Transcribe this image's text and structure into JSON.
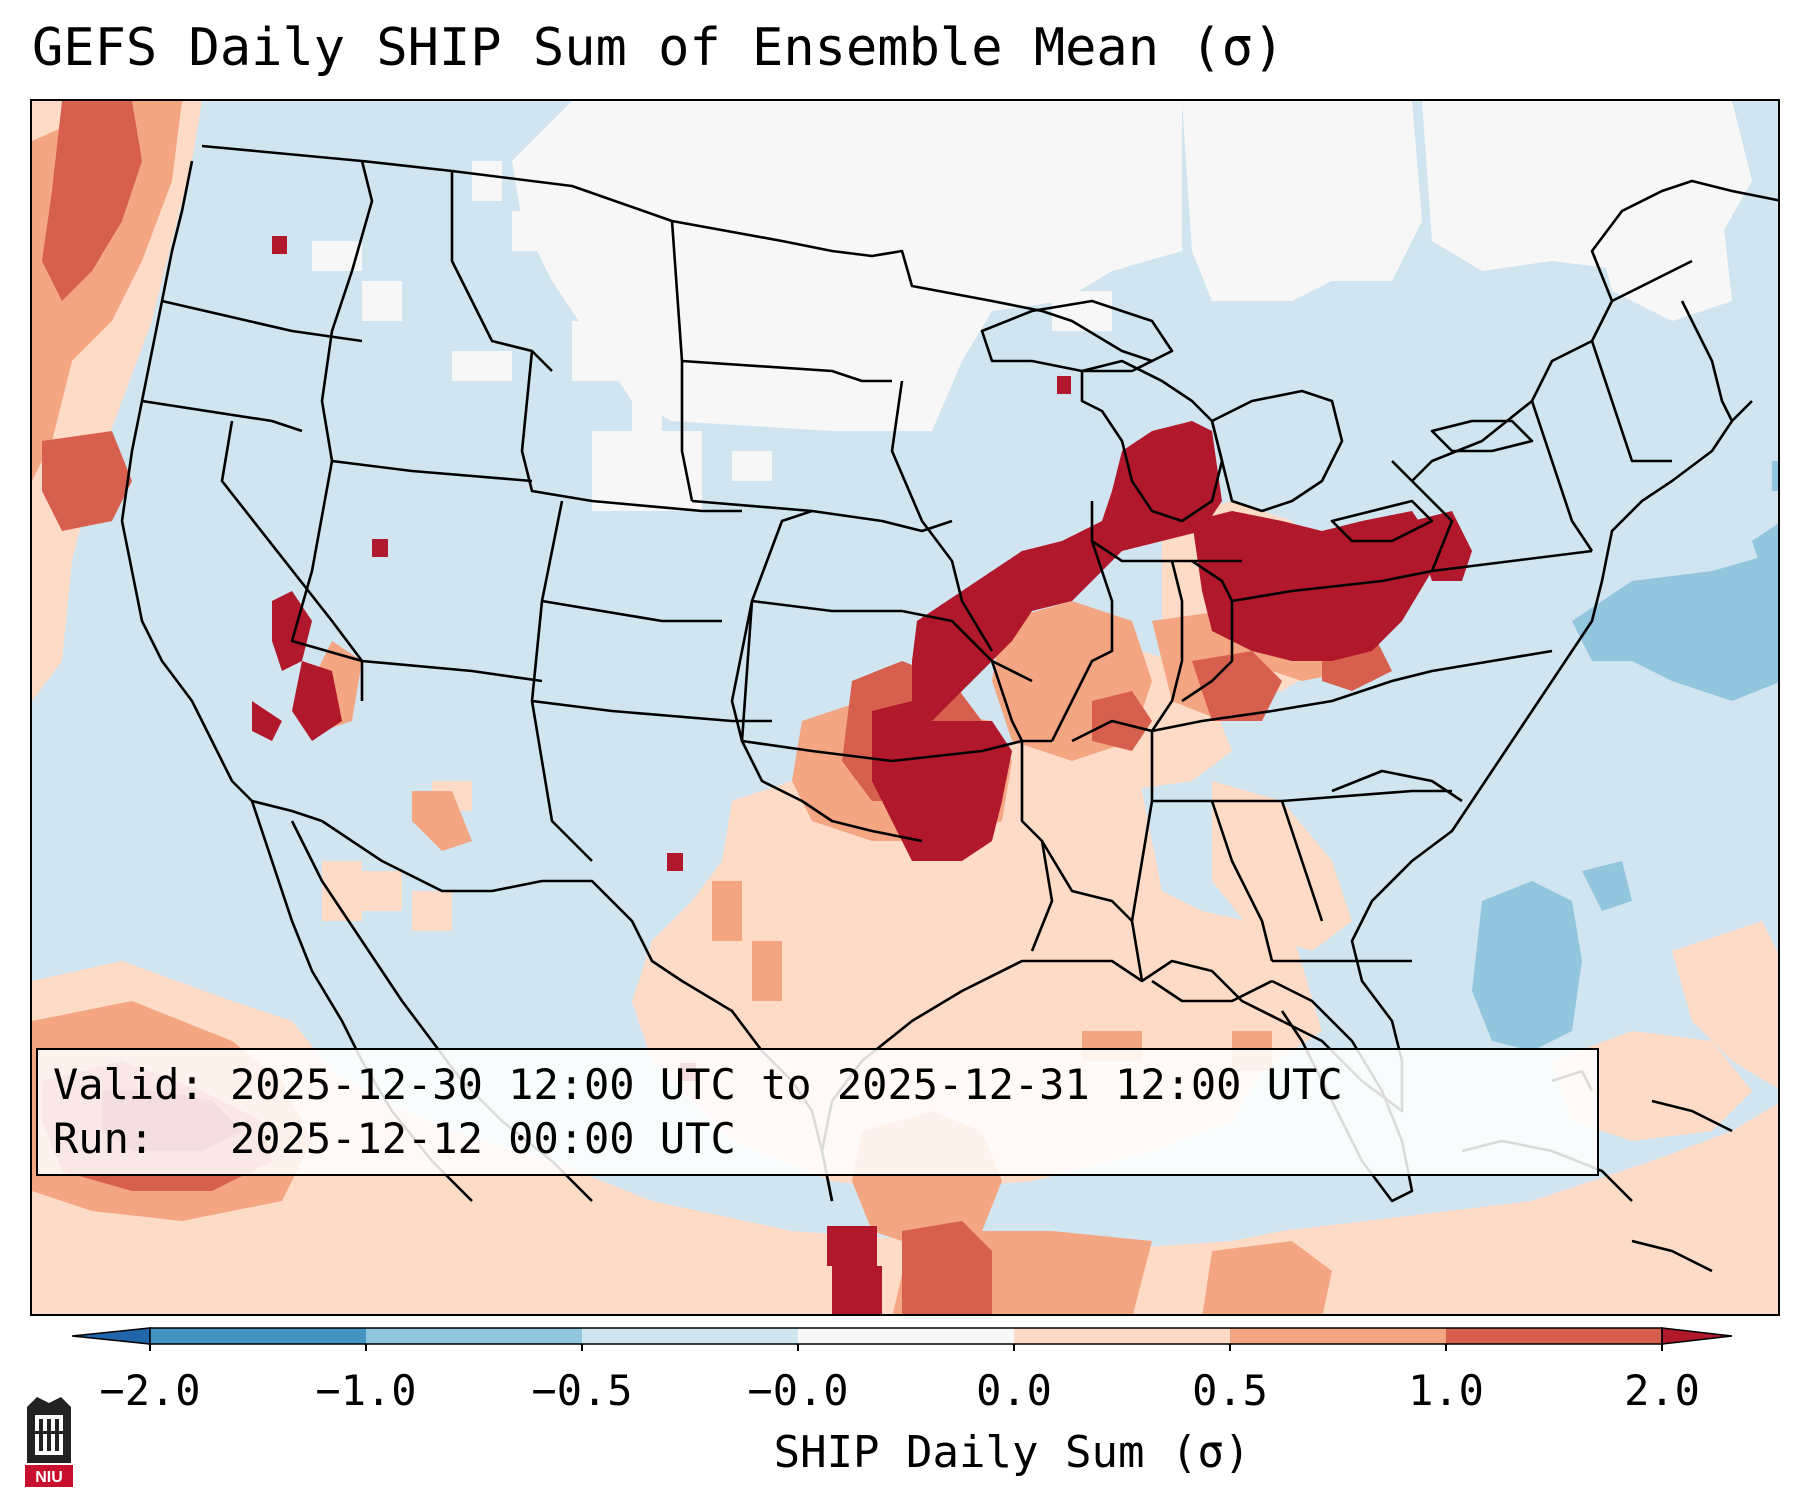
{
  "title": "GEFS Daily SHIP Sum of Ensemble Mean (σ)",
  "valid_label": "Valid:",
  "valid_value": "2025-12-30 12:00 UTC to 2025-12-31 12:00 UTC",
  "run_label": "Run:",
  "run_value": "2025-12-12 00:00 UTC",
  "colorbar": {
    "label": "SHIP Daily Sum (σ)",
    "ticks": [
      "−2.0",
      "−1.0",
      "−0.5",
      "−0.0",
      "0.0",
      "0.5",
      "1.0",
      "2.0"
    ],
    "bins": [
      {
        "from": "<-2.0",
        "color": "#2166ac"
      },
      {
        "from": "-2.0",
        "to": "-1.0",
        "color": "#4393c3"
      },
      {
        "from": "-1.0",
        "to": "-0.5",
        "color": "#92c5de"
      },
      {
        "from": "-0.5",
        "to": "-0.0",
        "color": "#d1e5f0"
      },
      {
        "from": "-0.0",
        "to": "0.0",
        "color": "#f7f7f7"
      },
      {
        "from": "0.0",
        "to": "0.5",
        "color": "#fddbc7"
      },
      {
        "from": "0.5",
        "to": "1.0",
        "color": "#f4a582"
      },
      {
        "from": "1.0",
        "to": "2.0",
        "color": "#d6604d"
      },
      {
        "from": ">2.0",
        "color": "#b2182b"
      }
    ]
  },
  "logo": {
    "text": "NIU",
    "color": "#c8102e"
  }
}
